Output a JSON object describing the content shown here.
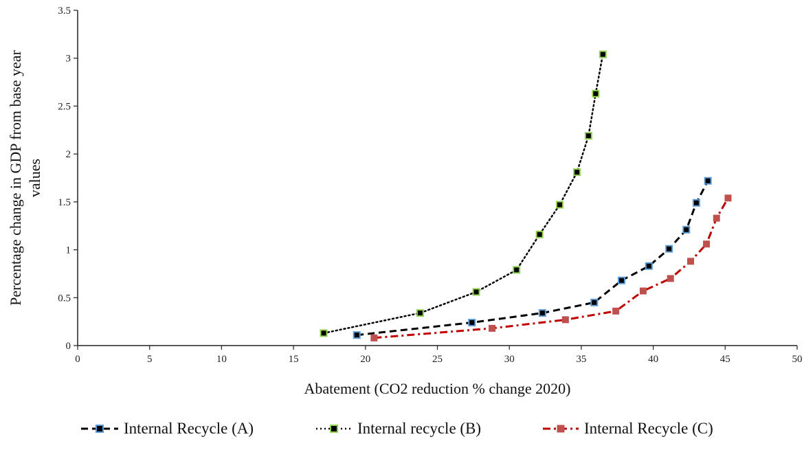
{
  "chart_data": {
    "type": "line",
    "title": "",
    "xlabel": "Abatement  (CO2 reduction  % change  2020)",
    "ylabel_lines": [
      "Percentage  change  in GDP from  base year",
      "values"
    ],
    "xlim": [
      0,
      50
    ],
    "ylim": [
      0,
      3.5
    ],
    "x_ticks": [
      0,
      5,
      10,
      15,
      20,
      25,
      30,
      35,
      40,
      45,
      50
    ],
    "x_tick_labels": [
      "0",
      "5",
      "10",
      "15",
      "20",
      "25",
      "30",
      "35",
      "40",
      "45",
      "50"
    ],
    "y_ticks": [
      0,
      0.5,
      1,
      1.5,
      2,
      2.5,
      3,
      3.5
    ],
    "y_tick_labels": [
      "0",
      "0.5",
      "1",
      "1.5",
      "2",
      "2.5",
      "3",
      "3.5"
    ],
    "grid": false,
    "legend_position": "bottom",
    "series": [
      {
        "name": "Internal Recycle (A)",
        "line_color": "#000000",
        "line_style": "dashed",
        "marker_fill": "#000000",
        "marker_edge": "#5b9bd5",
        "x": [
          19.4,
          27.4,
          32.3,
          35.9,
          37.8,
          39.7,
          41.1,
          42.3,
          43.0,
          43.8
        ],
        "y": [
          0.11,
          0.24,
          0.34,
          0.45,
          0.68,
          0.83,
          1.01,
          1.21,
          1.49,
          1.72
        ]
      },
      {
        "name": "Internal recycle (B)",
        "line_color": "#000000",
        "line_style": "dotted",
        "marker_fill": "#000000",
        "marker_edge": "#92d050",
        "x": [
          17.1,
          23.8,
          27.7,
          30.5,
          32.1,
          33.5,
          34.7,
          35.5,
          36.0,
          36.5
        ],
        "y": [
          0.13,
          0.34,
          0.56,
          0.79,
          1.16,
          1.47,
          1.81,
          2.19,
          2.63,
          3.04
        ]
      },
      {
        "name": "Internal Recycle (C)",
        "line_color": "#c00000",
        "line_style": "dashdot",
        "marker_fill": "#c0504d",
        "marker_edge": "#c0504d",
        "x": [
          20.6,
          28.8,
          33.9,
          37.4,
          39.3,
          41.2,
          42.6,
          43.7,
          44.4,
          45.2
        ],
        "y": [
          0.08,
          0.18,
          0.27,
          0.36,
          0.57,
          0.7,
          0.88,
          1.06,
          1.33,
          1.54
        ]
      }
    ]
  }
}
